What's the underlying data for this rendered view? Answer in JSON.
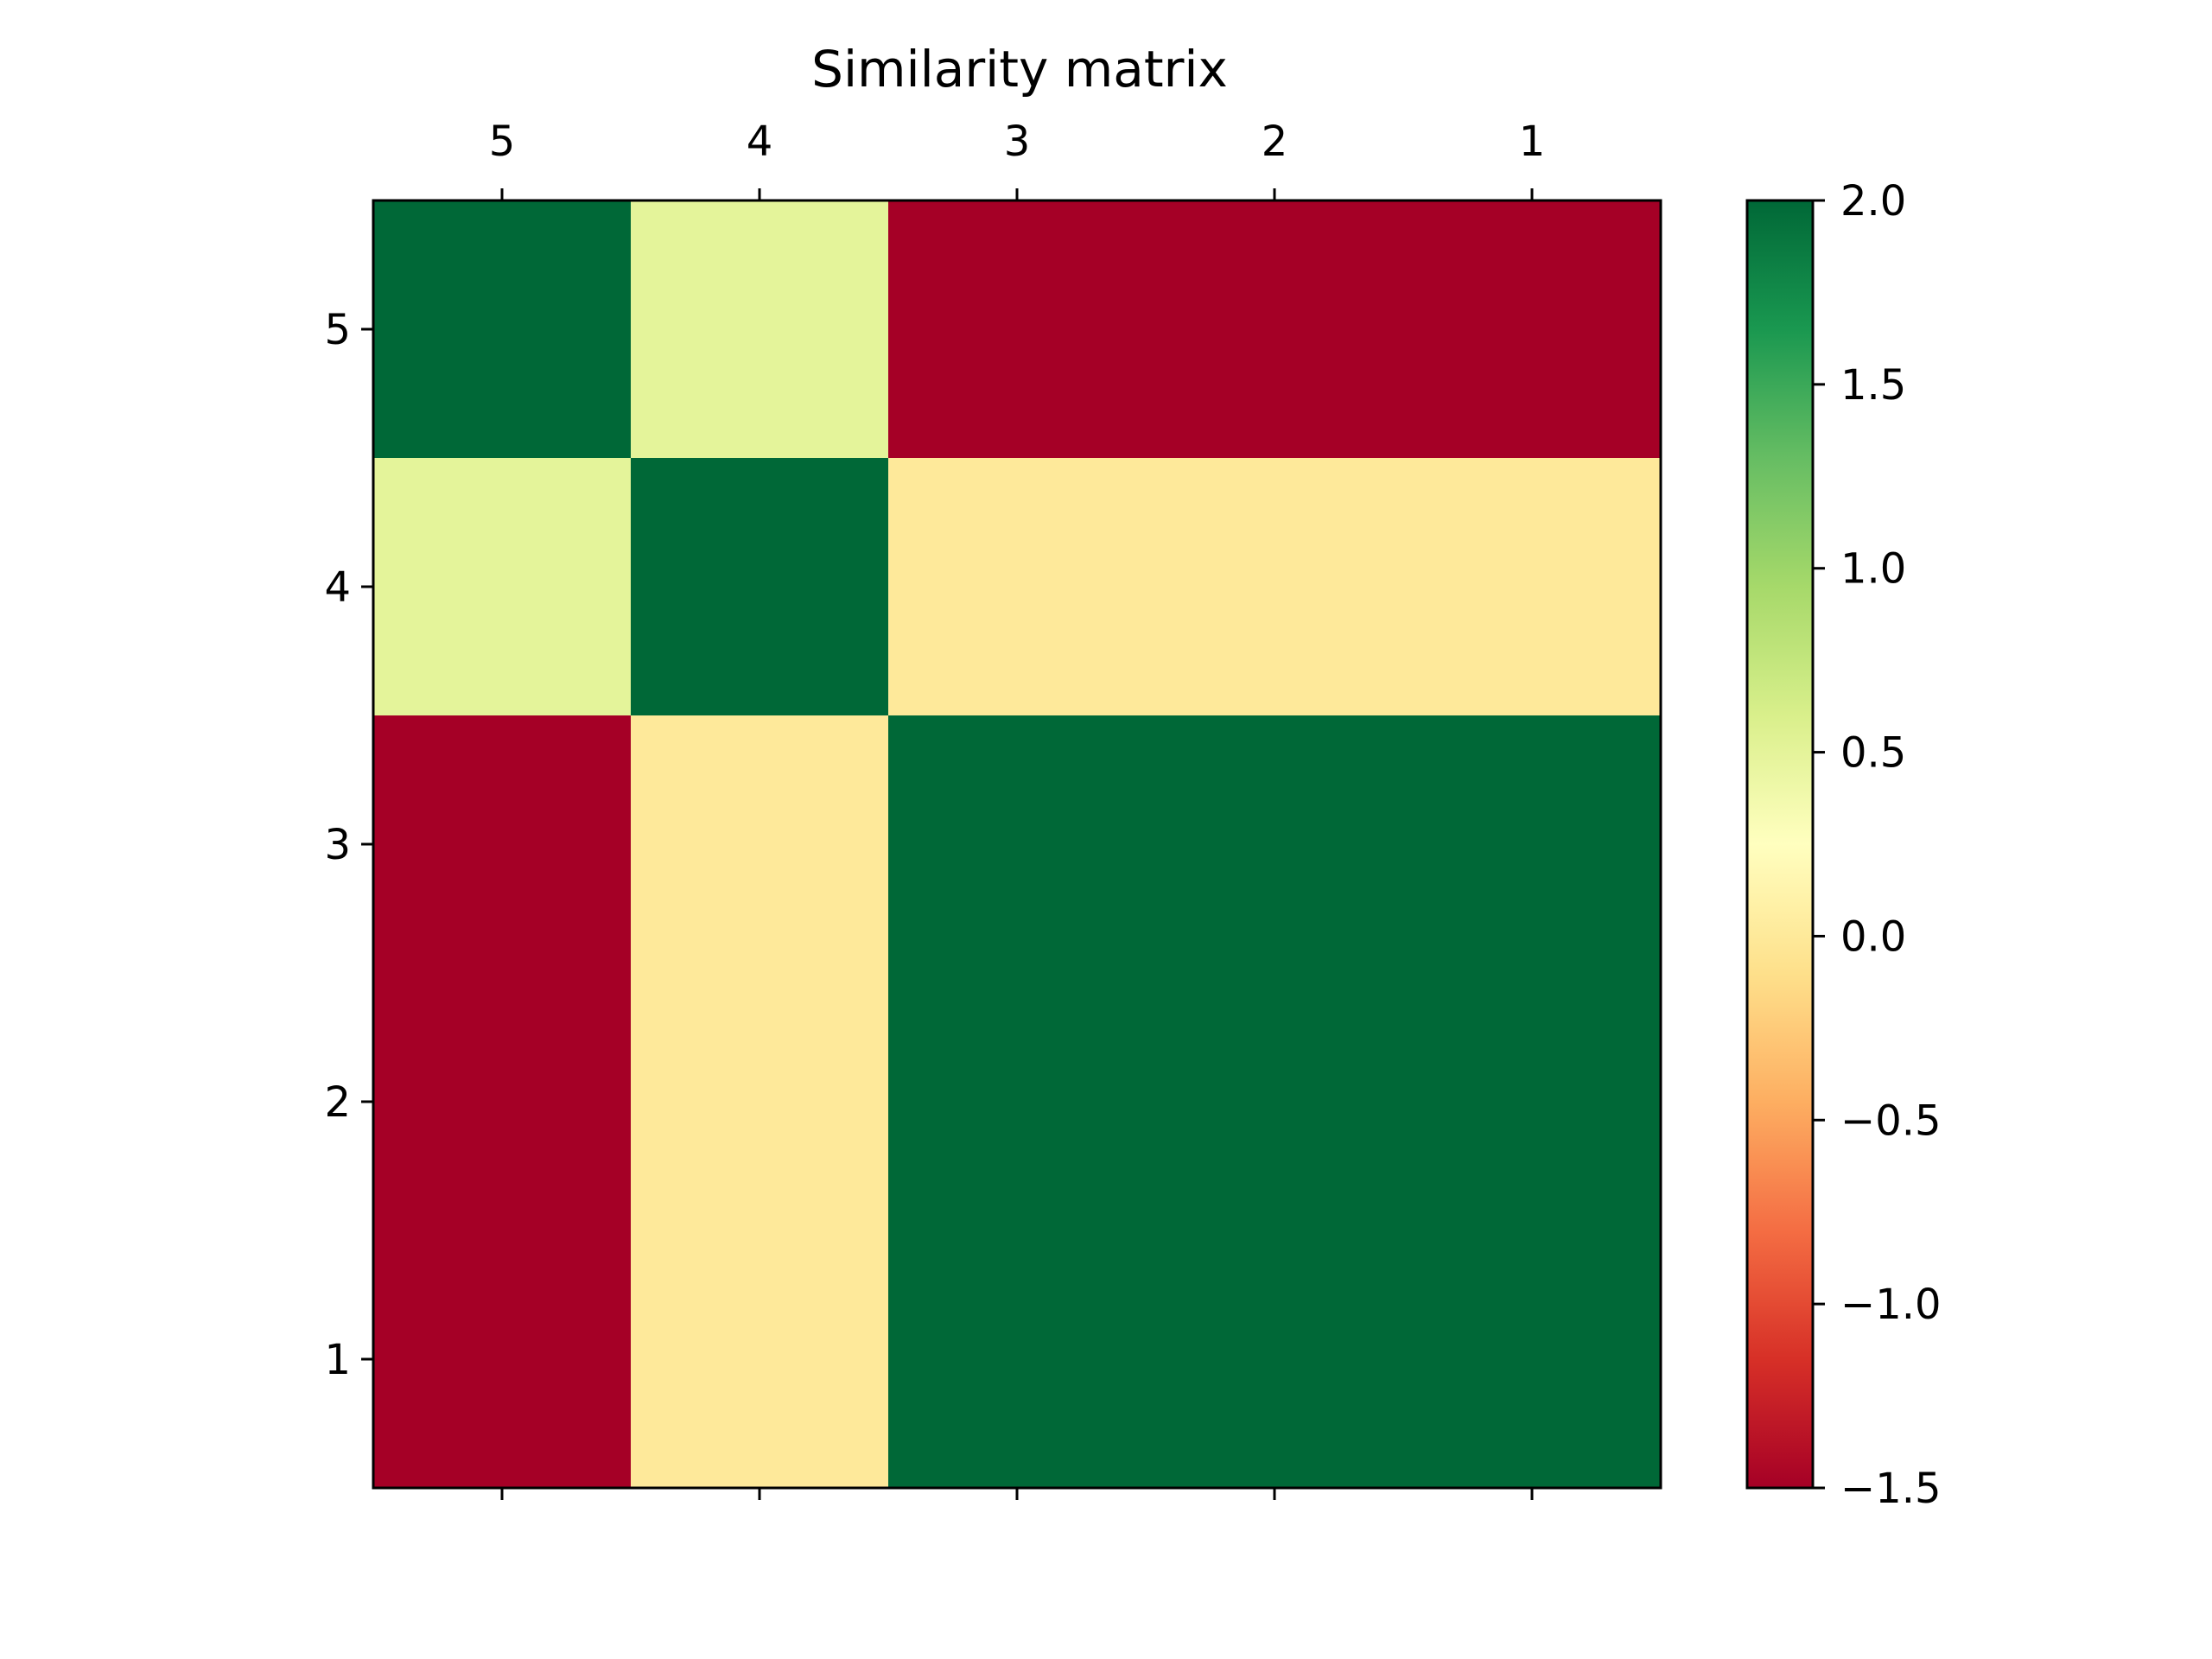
{
  "chart_data": {
    "type": "heatmap",
    "title": "Similarity matrix",
    "x_tick_labels": [
      "5",
      "4",
      "3",
      "2",
      "1"
    ],
    "y_tick_labels": [
      "5",
      "4",
      "3",
      "2",
      "1"
    ],
    "values": [
      [
        2.0,
        0.5,
        -1.5,
        -1.5,
        -1.5
      ],
      [
        0.5,
        2.0,
        0.0,
        0.0,
        0.0
      ],
      [
        -1.5,
        0.0,
        2.0,
        2.0,
        2.0
      ],
      [
        -1.5,
        0.0,
        2.0,
        2.0,
        2.0
      ],
      [
        -1.5,
        0.0,
        2.0,
        2.0,
        2.0
      ]
    ],
    "colormap": "RdYlGn",
    "vmin": -1.5,
    "vmax": 2.0,
    "colorbar_ticks": [
      2.0,
      1.5,
      1.0,
      0.5,
      0.0,
      -0.5,
      -1.0,
      -1.5
    ],
    "colorbar_tick_labels": [
      "2.0",
      "1.5",
      "1.0",
      "0.5",
      "0.0",
      "−0.5",
      "−1.0",
      "−1.5"
    ],
    "x_ticks_position": "top",
    "grid": false,
    "legend": "colorbar-right"
  }
}
